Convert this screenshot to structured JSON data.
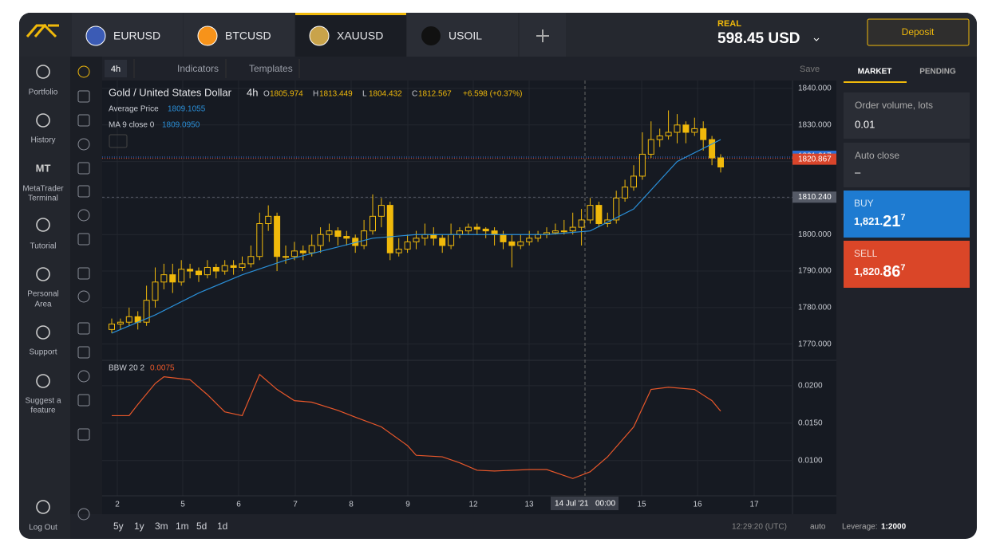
{
  "header": {
    "tabs": [
      "EURUSD",
      "BTCUSD",
      "XAUUSD",
      "USOIL"
    ],
    "account_type": "REAL",
    "balance": "598.45 USD",
    "deposit": "Deposit"
  },
  "sidebar": {
    "items": [
      "Portfolio",
      "History",
      "MT",
      "Personal",
      "Support",
      "Tutorial"
    ],
    "labels": [
      "Portfolio",
      "History",
      "MetaTrader",
      "Terminal",
      "Tutorial",
      "Personal",
      "Area",
      "Support",
      "Suggest a",
      "feature",
      "Log Out"
    ],
    "mt": "MT"
  },
  "toolbar": {
    "timeframe": "4h",
    "indicators": "Indicators",
    "templates": "Templates",
    "save": "Save"
  },
  "legend": {
    "instrument": "Gold / United States Dollar",
    "timeframe": "4h",
    "ohlc": [
      {
        "label": "O",
        "value": "1805.974"
      },
      {
        "label": "H",
        "value": "1813.449"
      },
      {
        "label": "L",
        "value": "1804.432"
      },
      {
        "label": "C",
        "value": "1812.567"
      }
    ],
    "change": "+6.598 (+0.37%)",
    "avg_label": "Average Price",
    "avg_value": "1809.1055",
    "ma_label": "MA 9 close 0",
    "ma_value": "1809.0950",
    "bbw_label": "BBW 20 2",
    "bbw_value": "0.0075"
  },
  "chart_data": [
    {
      "type": "candlestick",
      "color": "#f0b90b",
      "ylim": [
        1766,
        1840
      ],
      "yticks": [
        {
          "value": 1840,
          "label": "1840.000"
        },
        {
          "value": 1830,
          "label": "1830.000"
        },
        {
          "value": 1820,
          "label": "1820.000"
        },
        {
          "value": 1810,
          "label": "1810.000"
        },
        {
          "value": 1800,
          "label": "1800.000"
        },
        {
          "value": 1790,
          "label": "1790.000"
        },
        {
          "value": 1780,
          "label": "1780.000"
        },
        {
          "value": 1770,
          "label": "1770.000"
        }
      ],
      "price_lines": [
        {
          "value": 1821.217,
          "label": "1821.217",
          "color": "#2a6fd6"
        },
        {
          "value": 1820.867,
          "label": "1820.867",
          "color": "#d9452b"
        },
        {
          "value": 1810.24,
          "label": "1810.240",
          "color": "#555a66"
        }
      ],
      "categories": [
        "2",
        "5",
        "6",
        "7",
        "8",
        "9",
        "12",
        "13",
        "15",
        "16",
        "17"
      ],
      "crosshair_label": "14 Jul '21",
      "crosshair_time": "00:00",
      "candles": [
        [
          1774,
          1777,
          1773,
          1775.5
        ],
        [
          1775.5,
          1777,
          1774,
          1776
        ],
        [
          1776,
          1780,
          1775,
          1777.5
        ],
        [
          1777.5,
          1779,
          1774,
          1776
        ],
        [
          1776,
          1786,
          1775,
          1782
        ],
        [
          1782,
          1791,
          1780,
          1787
        ],
        [
          1787,
          1792,
          1785,
          1789
        ],
        [
          1789,
          1792,
          1784,
          1787
        ],
        [
          1787,
          1793,
          1786,
          1790.5
        ],
        [
          1790.5,
          1792,
          1788,
          1790
        ],
        [
          1790,
          1791,
          1787,
          1789
        ],
        [
          1789,
          1793,
          1788,
          1791
        ],
        [
          1791,
          1792,
          1788,
          1790
        ],
        [
          1790,
          1793,
          1789,
          1791.5
        ],
        [
          1791.5,
          1793,
          1789,
          1791
        ],
        [
          1791,
          1794,
          1790,
          1792
        ],
        [
          1792,
          1797,
          1791,
          1794
        ],
        [
          1794,
          1806,
          1793,
          1803
        ],
        [
          1803,
          1808,
          1801,
          1805
        ],
        [
          1805,
          1806,
          1790,
          1794
        ],
        [
          1794,
          1797,
          1792,
          1794
        ],
        [
          1794,
          1798,
          1793,
          1795.5
        ],
        [
          1795.5,
          1797,
          1793,
          1795
        ],
        [
          1795,
          1800,
          1794,
          1797
        ],
        [
          1797,
          1802,
          1795,
          1800
        ],
        [
          1800,
          1803,
          1798,
          1801
        ],
        [
          1801,
          1802,
          1797,
          1799.5
        ],
        [
          1799.5,
          1801,
          1797,
          1799
        ],
        [
          1799,
          1800,
          1795,
          1797
        ],
        [
          1797,
          1804,
          1796,
          1801
        ],
        [
          1801,
          1811,
          1800,
          1805
        ],
        [
          1805,
          1810,
          1802,
          1808
        ],
        [
          1808,
          1809,
          1793,
          1795
        ],
        [
          1795,
          1799,
          1794,
          1796
        ],
        [
          1796,
          1800,
          1795,
          1798
        ],
        [
          1798,
          1801,
          1796,
          1799
        ],
        [
          1799,
          1803,
          1797,
          1800
        ],
        [
          1800,
          1802,
          1797,
          1799
        ],
        [
          1799,
          1800,
          1795,
          1797
        ],
        [
          1797,
          1803,
          1796,
          1800
        ],
        [
          1800,
          1802,
          1799,
          1801
        ],
        [
          1801,
          1803,
          1800,
          1802
        ],
        [
          1802,
          1803,
          1800,
          1801.5
        ],
        [
          1801.5,
          1802,
          1799,
          1801
        ],
        [
          1801,
          1802,
          1797,
          1800
        ],
        [
          1800,
          1801,
          1796,
          1798
        ],
        [
          1798,
          1800,
          1791,
          1797
        ],
        [
          1797,
          1800,
          1796,
          1798
        ],
        [
          1798,
          1801,
          1797,
          1799
        ],
        [
          1799,
          1801,
          1798,
          1800
        ],
        [
          1800,
          1802,
          1799,
          1800.5
        ],
        [
          1800.5,
          1803,
          1800,
          1801
        ],
        [
          1801,
          1804,
          1800,
          1801
        ],
        [
          1801,
          1806,
          1800,
          1802
        ],
        [
          1802,
          1807,
          1797,
          1804
        ],
        [
          1804,
          1810,
          1803,
          1808
        ],
        [
          1808,
          1809,
          1802,
          1803
        ],
        [
          1803,
          1806,
          1802,
          1804
        ],
        [
          1804,
          1812,
          1803,
          1810
        ],
        [
          1810,
          1815,
          1809,
          1813
        ],
        [
          1813,
          1819,
          1812,
          1816
        ],
        [
          1816,
          1828,
          1815,
          1822
        ],
        [
          1822,
          1831,
          1821,
          1826
        ],
        [
          1826,
          1829,
          1824,
          1827
        ],
        [
          1827,
          1834,
          1826,
          1828
        ],
        [
          1828,
          1833,
          1825,
          1830
        ],
        [
          1830,
          1831,
          1825,
          1828
        ],
        [
          1828,
          1832,
          1827,
          1829
        ],
        [
          1829,
          1831,
          1823,
          1826
        ],
        [
          1826,
          1827,
          1819,
          1821
        ],
        [
          1821,
          1822,
          1817,
          1818.5
        ]
      ],
      "series": [
        {
          "name": "MA 9 close 0",
          "color": "#2a8fd8",
          "x": [
            0,
            5,
            10,
            15,
            20,
            25,
            30,
            35,
            40,
            45,
            50,
            55,
            60,
            65,
            70
          ],
          "values": [
            1773,
            1778,
            1784,
            1789,
            1793,
            1796,
            1799,
            1800,
            1800,
            1800,
            1800,
            1801,
            1807,
            1820,
            1826
          ]
        }
      ]
    },
    {
      "type": "line",
      "ylim": [
        0.0055,
        0.0235
      ],
      "yticks": [
        {
          "value": 0.02,
          "label": "0.0200"
        },
        {
          "value": 0.015,
          "label": "0.0150"
        },
        {
          "value": 0.01,
          "label": "0.0100"
        }
      ],
      "series": [
        {
          "name": "BBW 20 2",
          "color": "#e8572a",
          "x": [
            0,
            2,
            3,
            5,
            6,
            9,
            11,
            13,
            15,
            17,
            19,
            21,
            23,
            26,
            28,
            31,
            34,
            35,
            38,
            40,
            42,
            44,
            48,
            50,
            53,
            55,
            57,
            60,
            62,
            64,
            67,
            69,
            70
          ],
          "values": [
            0.016,
            0.016,
            0.0175,
            0.0203,
            0.0212,
            0.0208,
            0.0188,
            0.0165,
            0.016,
            0.0215,
            0.0195,
            0.018,
            0.0178,
            0.0167,
            0.0158,
            0.0145,
            0.012,
            0.0107,
            0.0105,
            0.0097,
            0.0087,
            0.0086,
            0.0088,
            0.0088,
            0.0076,
            0.0085,
            0.0105,
            0.0145,
            0.0195,
            0.0198,
            0.0195,
            0.018,
            0.0166
          ]
        }
      ]
    }
  ],
  "ranges": [
    "5y",
    "1y",
    "3m",
    "1m",
    "5d",
    "1d"
  ],
  "footer": {
    "time": "12:29:20 (UTC)",
    "scale": "auto",
    "leverage_label": "Leverage:",
    "leverage": "1:2000"
  },
  "order_panel": {
    "tabs": [
      "MARKET",
      "PENDING"
    ],
    "volume_label": "Order volume, lots",
    "volume": "0.01",
    "auto_close_label": "Auto close",
    "auto_close": "–",
    "buy": {
      "label": "BUY",
      "main": "1,821.",
      "big": "21",
      "pip": "7"
    },
    "sell": {
      "label": "SELL",
      "main": "1,820.",
      "big": "86",
      "pip": "7"
    }
  }
}
